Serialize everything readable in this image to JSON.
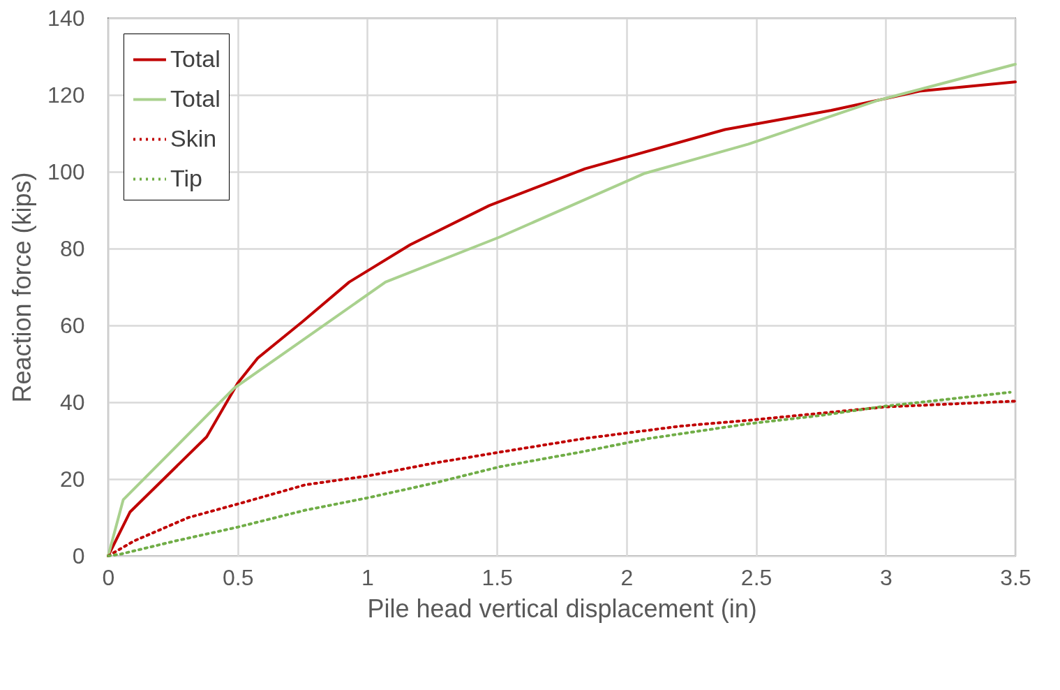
{
  "chart_data": {
    "type": "line",
    "xlabel": "Pile head vertical displacement (in)",
    "ylabel": "Reaction force (kips)",
    "xlim": [
      0,
      3.5
    ],
    "xticks": [
      0,
      0.5,
      1,
      1.5,
      2,
      2.5,
      3,
      3.5
    ],
    "ylim": [
      0,
      140
    ],
    "yticks": [
      0,
      20,
      40,
      60,
      80,
      100,
      120,
      140
    ],
    "grid": true,
    "legend": "top left",
    "marker": "none",
    "series": [
      {
        "name": "Total",
        "color": "#c00000",
        "line_style": "solid",
        "x": [
          0,
          0.084,
          0.38,
          0.5,
          0.577,
          0.75,
          0.93,
          1.165,
          1.47,
          1.84,
          2.38,
          2.79,
          3.13,
          3.5
        ],
        "values": [
          0,
          11.4,
          31,
          45,
          51.5,
          61,
          71.3,
          81,
          91.2,
          100.8,
          111,
          116,
          121,
          123.4
        ]
      },
      {
        "name": "Total",
        "color": "#a9d18e",
        "line_style": "solid",
        "x": [
          0,
          0.058,
          0.485,
          1.07,
          1.51,
          2.07,
          2.47,
          2.97,
          3.5
        ],
        "values": [
          0,
          14.6,
          43.6,
          71.3,
          83,
          99.6,
          107.2,
          118.6,
          128
        ]
      },
      {
        "name": "Skin",
        "color": "#c00000",
        "line_style": "dotted",
        "x": [
          0,
          0.1,
          0.31,
          0.51,
          0.76,
          1,
          1.26,
          1.51,
          1.84,
          2.21,
          2.47,
          3,
          3.5
        ],
        "values": [
          0,
          3.9,
          10,
          13.7,
          18.5,
          20.8,
          24.2,
          27,
          30.6,
          33.8,
          35.3,
          38.8,
          40.3
        ]
      },
      {
        "name": "Tip",
        "color": "#70ad47",
        "line_style": "dotted",
        "x": [
          0,
          0.05,
          0.26,
          0.5,
          0.76,
          1,
          1.26,
          1.51,
          1.82,
          2.08,
          2.47,
          2.74,
          3,
          3.48
        ],
        "values": [
          0,
          0.5,
          3.9,
          7.5,
          11.9,
          15.1,
          19,
          23.2,
          27,
          30.5,
          34.4,
          36.5,
          39,
          42.6
        ]
      }
    ]
  }
}
